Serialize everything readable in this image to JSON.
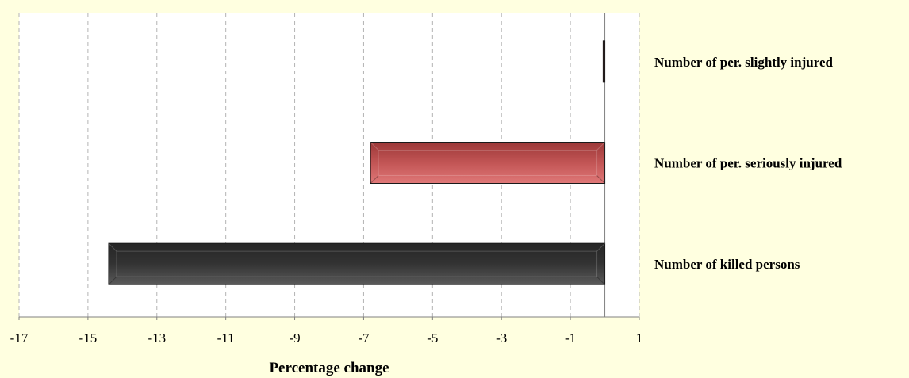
{
  "chart_data": {
    "type": "bar",
    "orientation": "horizontal",
    "categories": [
      "Number of per. slightly injured",
      "Number of per. seriously injured",
      "Number of killed persons"
    ],
    "values": [
      -0.05,
      -6.8,
      -14.4
    ],
    "colors": [
      "#8B2E2E",
      "#B84A4A",
      "#333333"
    ],
    "xlabel": "Percentage change",
    "ylabel": "",
    "title": "",
    "xlim": [
      -17,
      1
    ],
    "xticks": [
      -17,
      -15,
      -13,
      -11,
      -9,
      -7,
      -5,
      -3,
      -1,
      1
    ],
    "grid": true,
    "grid_style": "dashed-vertical",
    "plot_background": "#FFFFFF",
    "page_background": "#FFFFE0"
  }
}
